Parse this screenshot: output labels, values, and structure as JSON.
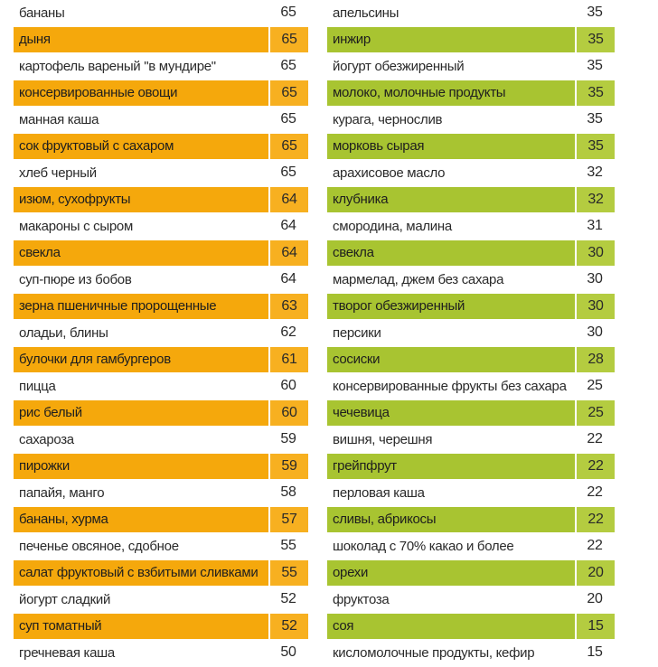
{
  "left_rows": [
    {
      "name": "бананы",
      "value": "65"
    },
    {
      "name": "дыня",
      "value": "65"
    },
    {
      "name": "картофель вареный \"в мундире\"",
      "value": "65"
    },
    {
      "name": "консервированные овощи",
      "value": "65"
    },
    {
      "name": "манная каша",
      "value": "65"
    },
    {
      "name": "сок фруктовый с сахаром",
      "value": "65"
    },
    {
      "name": "хлеб черный",
      "value": "65"
    },
    {
      "name": "изюм, сухофрукты",
      "value": "64"
    },
    {
      "name": "макароны с сыром",
      "value": "64"
    },
    {
      "name": "свекла",
      "value": "64"
    },
    {
      "name": "суп-пюре из бобов",
      "value": "64"
    },
    {
      "name": "зерна пшеничные пророщенные",
      "value": "63"
    },
    {
      "name": "оладьи, блины",
      "value": "62"
    },
    {
      "name": "булочки для гамбургеров",
      "value": "61"
    },
    {
      "name": "пицца",
      "value": "60"
    },
    {
      "name": "рис белый",
      "value": "60"
    },
    {
      "name": "сахароза",
      "value": "59"
    },
    {
      "name": "пирожки",
      "value": "59"
    },
    {
      "name": "папайя, манго",
      "value": "58"
    },
    {
      "name": "бананы, хурма",
      "value": "57"
    },
    {
      "name": "печенье овсяное, сдобное",
      "value": "55"
    },
    {
      "name": "салат фруктовый с взбитыми сливками",
      "value": "55"
    },
    {
      "name": "йогурт сладкий",
      "value": "52"
    },
    {
      "name": "суп томатный",
      "value": "52"
    },
    {
      "name": "гречневая каша",
      "value": "50"
    }
  ],
  "right_rows": [
    {
      "name": "апельсины",
      "value": "35"
    },
    {
      "name": "инжир",
      "value": "35"
    },
    {
      "name": "йогурт обезжиренный",
      "value": "35"
    },
    {
      "name": "молоко, молочные продукты",
      "value": "35"
    },
    {
      "name": "курага, чернослив",
      "value": "35"
    },
    {
      "name": "морковь сырая",
      "value": "35"
    },
    {
      "name": "арахисовое масло",
      "value": "32"
    },
    {
      "name": "клубника",
      "value": "32"
    },
    {
      "name": "смородина, малина",
      "value": "31"
    },
    {
      "name": "свекла",
      "value": "30"
    },
    {
      "name": "мармелад, джем без сахара",
      "value": "30"
    },
    {
      "name": "творог обезжиренный",
      "value": "30"
    },
    {
      "name": "персики",
      "value": "30"
    },
    {
      "name": "сосиски",
      "value": "28"
    },
    {
      "name": "консервированные фрукты без сахара",
      "value": "25"
    },
    {
      "name": "чечевица",
      "value": "25"
    },
    {
      "name": "вишня, черешня",
      "value": "22"
    },
    {
      "name": "грейпфрут",
      "value": "22"
    },
    {
      "name": "перловая каша",
      "value": "22"
    },
    {
      "name": "сливы, абрикосы",
      "value": "22"
    },
    {
      "name": "шоколад с 70% какао и более",
      "value": "22"
    },
    {
      "name": "орехи",
      "value": "20"
    },
    {
      "name": "фруктоза",
      "value": "20"
    },
    {
      "name": "соя",
      "value": "15"
    },
    {
      "name": "кисломолочные продукты, кефир",
      "value": "15"
    }
  ],
  "colors": {
    "left_highlight": "#f5a80c",
    "right_highlight": "#a8c431",
    "text": "#2a2a2a"
  }
}
